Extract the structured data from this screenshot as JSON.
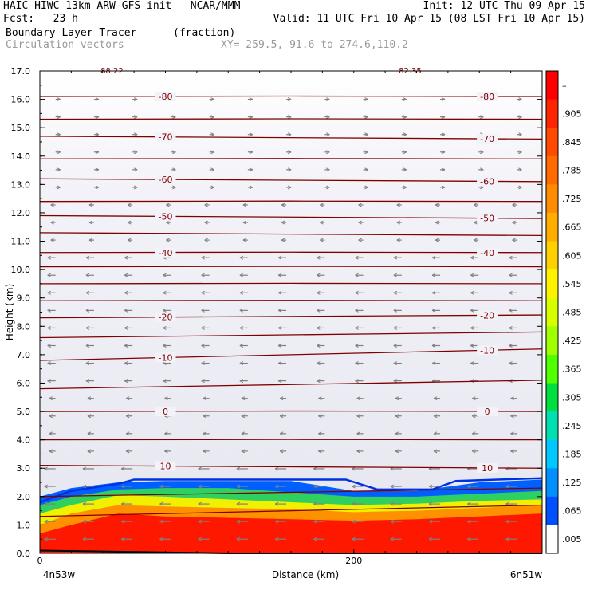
{
  "header": {
    "line1_left": "HAIC-HIWC 13km ARW-GFS init   NCAR/MMM",
    "line1_right": "Init: 12 UTC Thu 09 Apr 15",
    "line2_left": "Fcst:   23 h",
    "line2_right": "Valid: 11 UTC Fri 10 Apr 15 (08 LST Fri 10 Apr 15)",
    "line3_field": "Boundary Layer Tracer",
    "line3_units": "(fraction)",
    "line4_field": "Circulation vectors",
    "line4_xy": "XY= 259.5, 91.6 to 274.6,110.2"
  },
  "chart_data": {
    "type": "heatmap",
    "ylabel": "Height (km)",
    "xlabel": "Distance (km)",
    "ylim": [
      0,
      17
    ],
    "xlim": [
      0,
      320
    ],
    "yticks": [
      "0.0",
      "1.0",
      "2.0",
      "3.0",
      "4.0",
      "5.0",
      "6.0",
      "7.0",
      "8.0",
      "9.0",
      "10.0",
      "11.0",
      "12.0",
      "13.0",
      "14.0",
      "15.0",
      "16.0",
      "17.0"
    ],
    "xticks": [
      {
        "value": 0,
        "label": "0"
      },
      {
        "value": 200,
        "label": "200"
      }
    ],
    "x_endpoint_labels": [
      "4n53w",
      "6n51w"
    ],
    "top_annotations": [
      {
        "x": 45,
        "label": "-88.22"
      },
      {
        "x": 235,
        "label": "-82.35"
      }
    ],
    "tracer_top_km": [
      {
        "x": 0,
        "z": 1.8
      },
      {
        "x": 20,
        "z": 2.2
      },
      {
        "x": 50,
        "z": 2.45
      },
      {
        "x": 60,
        "z": 2.6
      },
      {
        "x": 195,
        "z": 2.6
      },
      {
        "x": 215,
        "z": 2.25
      },
      {
        "x": 250,
        "z": 2.25
      },
      {
        "x": 265,
        "z": 2.55
      },
      {
        "x": 320,
        "z": 2.65
      }
    ],
    "tracer_layers": [
      {
        "label": "0.065–0.185 (blue)",
        "top_km": [
          2.0,
          2.3,
          2.5,
          2.55,
          2.55,
          2.55,
          2.2,
          2.2,
          2.5,
          2.6
        ]
      },
      {
        "label": "0.245–0.365 (green)",
        "top_km": [
          1.7,
          2.0,
          2.25,
          2.3,
          2.3,
          2.15,
          2.0,
          2.0,
          2.1,
          2.2
        ]
      },
      {
        "label": "0.425–0.605 (yellow)",
        "top_km": [
          1.4,
          1.7,
          2.05,
          2.0,
          1.9,
          1.8,
          1.7,
          1.75,
          1.85,
          1.9
        ]
      },
      {
        "label": "0.665–0.845 (orange)",
        "top_km": [
          1.0,
          1.4,
          1.7,
          1.65,
          1.6,
          1.55,
          1.45,
          1.5,
          1.6,
          1.7
        ]
      },
      {
        "label": "0.905–1.0 (red)",
        "top_km": [
          0.7,
          1.0,
          1.4,
          1.3,
          1.25,
          1.2,
          1.15,
          1.2,
          1.3,
          1.4
        ]
      }
    ],
    "layer_x": [
      0,
      20,
      50,
      80,
      120,
      160,
      200,
      240,
      280,
      320
    ],
    "isotherms_c": [
      {
        "value": -80,
        "z_left": 16.1,
        "z_right": 16.1,
        "labeled": true
      },
      {
        "value": -75,
        "z_left": 15.3,
        "z_right": 15.3,
        "labeled": false
      },
      {
        "value": -70,
        "z_left": 14.7,
        "z_right": 14.6,
        "labeled": true
      },
      {
        "value": -65,
        "z_left": 13.9,
        "z_right": 13.9,
        "labeled": false
      },
      {
        "value": -60,
        "z_left": 13.2,
        "z_right": 13.1,
        "labeled": true
      },
      {
        "value": -55,
        "z_left": 12.4,
        "z_right": 12.4,
        "labeled": false
      },
      {
        "value": -50,
        "z_left": 11.9,
        "z_right": 11.8,
        "labeled": true
      },
      {
        "value": -45,
        "z_left": 11.3,
        "z_right": 11.2,
        "labeled": false
      },
      {
        "value": -40,
        "z_left": 10.6,
        "z_right": 10.6,
        "labeled": true
      },
      {
        "value": -35,
        "z_left": 10.1,
        "z_right": 10.1,
        "labeled": false
      },
      {
        "value": -30,
        "z_left": 9.5,
        "z_right": 9.5,
        "labeled": false
      },
      {
        "value": -25,
        "z_left": 8.9,
        "z_right": 8.9,
        "labeled": false
      },
      {
        "value": -20,
        "z_left": 8.3,
        "z_right": 8.4,
        "labeled": true
      },
      {
        "value": -15,
        "z_left": 7.6,
        "z_right": 7.8,
        "labeled": false
      },
      {
        "value": -10,
        "z_left": 6.8,
        "z_right": 7.2,
        "labeled": true
      },
      {
        "value": -5,
        "z_left": 5.8,
        "z_right": 6.1,
        "labeled": false
      },
      {
        "value": 0,
        "z_left": 5.0,
        "z_right": 5.0,
        "labeled": true
      },
      {
        "value": 5,
        "z_left": 4.0,
        "z_right": 4.0,
        "labeled": false
      },
      {
        "value": 10,
        "z_left": 3.1,
        "z_right": 3.0,
        "labeled": true
      },
      {
        "value": 15,
        "z_left": 2.0,
        "z_right": 2.3,
        "labeled": false
      },
      {
        "value": 20,
        "z_left": 1.3,
        "z_right": 1.7,
        "labeled": false
      }
    ],
    "isotherm_label_x": [
      80,
      285
    ],
    "colorbar": {
      "labels": [
        "–",
        ".905",
        ".845",
        ".785",
        ".725",
        ".665",
        ".605",
        ".545",
        ".485",
        ".425",
        ".365",
        ".305",
        ".245",
        ".185",
        ".125",
        ".065",
        ".005"
      ],
      "colors": [
        "#ff0000",
        "#ff2400",
        "#ff4800",
        "#ff6a00",
        "#ff8c00",
        "#ffae00",
        "#ffd000",
        "#fff200",
        "#d8ff00",
        "#a0ff00",
        "#50ff00",
        "#00e040",
        "#00e0b0",
        "#00c8ff",
        "#0090ff",
        "#0050ff",
        "#ffffff"
      ]
    },
    "vectors": "circulation vectors (wind arrows) on a regular grid; mostly easterly (pointing left) in mid levels and in the boundary layer",
    "palette": {
      "bg_light": "#ffffff",
      "bg_dark": "#e9e9f3",
      "isotherm": "#800000",
      "vector": "#808080"
    }
  }
}
